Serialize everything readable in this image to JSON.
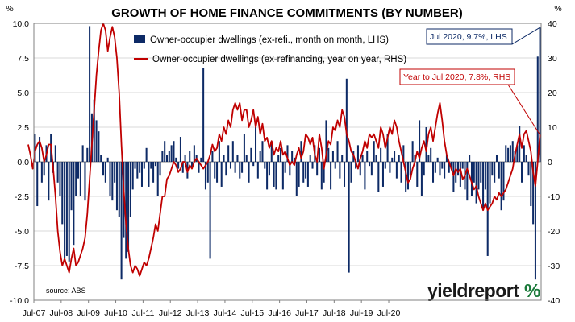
{
  "chart_data": {
    "type": "bar+line",
    "title": "GROWTH OF HOME FINANCE COMMITMENTS (BY NUMBER)",
    "y_left_unit": "%",
    "y_right_unit": "%",
    "ylim_left": [
      -10.0,
      10.0
    ],
    "ylim_right": [
      -40,
      40
    ],
    "yticks_left": [
      "10.0",
      "7.5",
      "5.0",
      "2.5",
      "0.0",
      "-2.5",
      "-5.0",
      "-7.5",
      "-10.0"
    ],
    "yticks_right": [
      "40",
      "30",
      "20",
      "10",
      "0",
      "-10",
      "-20",
      "-30",
      "-40"
    ],
    "x_tick_labels": [
      "Jul-07",
      "Jul-08",
      "Jul-09",
      "Jul-10",
      "Jul-11",
      "Jul-12",
      "Jul-13",
      "Jul-14",
      "Jul-15",
      "Jul-16",
      "Jul-17",
      "Jul-18",
      "Jul-19",
      "Jul-20"
    ],
    "x_start": "Jul-07",
    "legend_position": "top-center",
    "series": [
      {
        "name": "Owner-occupier dwellings (ex-refi., month on month, LHS)",
        "kind": "bar",
        "axis": "left",
        "color": "#0d2a66",
        "values": [
          2.0,
          -3.2,
          1.8,
          -1.5,
          -1.0,
          1.2,
          -2.8,
          2.0,
          -0.8,
          1.2,
          -1.5,
          -2.5,
          -4.5,
          -7.0,
          -6.8,
          -7.2,
          -3.5,
          -6.0,
          -2.5,
          -1.2,
          -2.5,
          1.2,
          -2.8,
          1.0,
          9.8,
          3.5,
          4.5,
          3.0,
          2.2,
          0.5,
          -1.0,
          -1.5,
          0.3,
          -2.5,
          -2.8,
          -1.5,
          -3.5,
          -4.0,
          -8.5,
          -5.5,
          -7.0,
          -6.5,
          -4.0,
          -2.0,
          -0.5,
          -1.2,
          -0.8,
          -1.8,
          -0.5,
          1.0,
          -1.8,
          -0.5,
          -1.5,
          -0.3,
          -2.5,
          -1.0,
          0.8,
          1.5,
          0.5,
          0.8,
          1.2,
          1.5,
          0.3,
          -0.5,
          1.8,
          -0.8,
          0.5,
          -1.2,
          0.8,
          -0.5,
          1.2,
          0.5,
          -0.8,
          0.3,
          6.8,
          -2.0,
          -1.5,
          -7.0,
          0.8,
          -1.2,
          -1.5,
          1.5,
          -1.8,
          0.5,
          -1.0,
          1.2,
          -0.5,
          1.5,
          -0.8,
          0.5,
          -1.2,
          -0.8,
          2.0,
          0.5,
          -1.5,
          1.0,
          -0.3,
          2.5,
          -1.2,
          0.8,
          1.5,
          -0.5,
          -2.0,
          -1.0,
          1.5,
          -1.8,
          -2.0,
          0.5,
          1.0,
          -2.0,
          -0.8,
          1.2,
          -1.0,
          0.8,
          0.3,
          -2.5,
          -1.8,
          1.5,
          -1.5,
          -1.2,
          -1.8,
          0.5,
          -0.5,
          1.2,
          -1.0,
          1.0,
          -2.0,
          -1.5,
          3.0,
          1.0,
          -2.0,
          0.8,
          -0.5,
          1.5,
          -1.2,
          0.5,
          -1.8,
          6.0,
          -8.0,
          -1.5,
          0.8,
          -0.5,
          1.2,
          -1.0,
          0.5,
          -2.0,
          0.8,
          -0.3,
          -1.0,
          1.5,
          0.5,
          -2.2,
          1.0,
          -1.8,
          -0.5,
          2.0,
          -0.8,
          0.3,
          0.8,
          -1.2,
          0.5,
          -1.5,
          1.2,
          -2.2,
          -2.0,
          -1.0,
          1.5,
          0.5,
          -1.8,
          3.0,
          -2.5,
          -1.0,
          2.5,
          0.5,
          1.0,
          -1.5,
          -0.8,
          0.3,
          -1.0,
          -0.5,
          -1.2,
          0.5,
          -0.8,
          -0.5,
          -2.2,
          -1.5,
          -1.0,
          -1.8,
          -0.5,
          -2.0,
          -2.8,
          0.5,
          -2.5,
          -1.5,
          -3.0,
          -2.0,
          -1.5,
          -3.5,
          -2.0,
          -6.8,
          -3.0,
          -1.0,
          -1.5,
          0.5,
          -1.2,
          -3.5,
          -2.8,
          1.2,
          1.0,
          1.2,
          1.5,
          0.8,
          1.2,
          2.6,
          -1.5,
          1.2,
          0.5,
          -1.0,
          -3.2,
          -4.5,
          -8.5,
          7.6,
          9.7
        ]
      },
      {
        "name": "Owner-occupier dwellings (ex-refinancing, year on year, RHS)",
        "kind": "line",
        "axis": "right",
        "color": "#c00000",
        "values": [
          5,
          2,
          -2,
          3,
          5,
          6,
          4,
          0,
          2,
          5,
          5,
          -2,
          -10,
          -20,
          -26,
          -30,
          -28,
          -30,
          -32,
          -28,
          -25,
          -30,
          -29,
          -27,
          -25,
          -22,
          -15,
          -5,
          5,
          15,
          25,
          32,
          38,
          40,
          38,
          32,
          36,
          39,
          36,
          30,
          20,
          5,
          -8,
          -18,
          -25,
          -30,
          -32,
          -30,
          -31,
          -33,
          -31,
          -29,
          -30,
          -28,
          -25,
          -22,
          -18,
          -20,
          -15,
          -10,
          -10,
          -5,
          -4,
          -2,
          0,
          -1,
          -3,
          -2,
          0,
          0,
          -3,
          -1,
          -2,
          0,
          1,
          0,
          -1,
          -2,
          -1,
          0,
          2,
          5,
          3,
          4,
          8,
          6,
          10,
          8,
          12,
          10,
          15,
          17,
          15,
          17,
          12,
          15,
          15,
          10,
          12,
          15,
          10,
          13,
          8,
          11,
          6,
          7,
          4,
          6,
          2,
          4,
          3,
          6,
          2,
          3,
          1,
          -1,
          0,
          -1,
          2,
          4,
          1,
          3,
          8,
          7,
          5,
          7,
          2,
          0,
          8,
          4,
          -2,
          2,
          6,
          5,
          10,
          9,
          12,
          10,
          15,
          13,
          8,
          6,
          3,
          2,
          0,
          -2,
          1,
          3,
          6,
          4,
          8,
          7,
          8,
          6,
          4,
          10,
          8,
          4,
          7,
          10,
          8,
          12,
          10,
          6,
          3,
          0,
          -3,
          -6,
          -5,
          -2,
          0,
          3,
          1,
          4,
          6,
          3,
          8,
          10,
          6,
          10,
          14,
          17,
          12,
          6,
          2,
          0,
          -2,
          -4,
          -2,
          -3,
          -2,
          -5,
          -4,
          -2,
          -4,
          -6,
          -8,
          -7,
          -10,
          -12,
          -14,
          -12,
          -14,
          -13,
          -12,
          -10,
          -11,
          -9,
          -10,
          -9,
          -8,
          -6,
          -4,
          -2,
          2,
          5,
          8,
          4,
          8,
          9,
          6,
          3,
          -3,
          -7,
          0,
          7.8
        ]
      }
    ],
    "annotations": [
      {
        "label": "Jul 2020, 9.7%, LHS",
        "series": 0,
        "point": "last"
      },
      {
        "label": "Year to Jul 2020, 7.8%, RHS",
        "series": 1,
        "point": "last"
      }
    ]
  },
  "source_label": "source: ABS",
  "logo": {
    "text": "yieldreport",
    "symbol": "%"
  }
}
